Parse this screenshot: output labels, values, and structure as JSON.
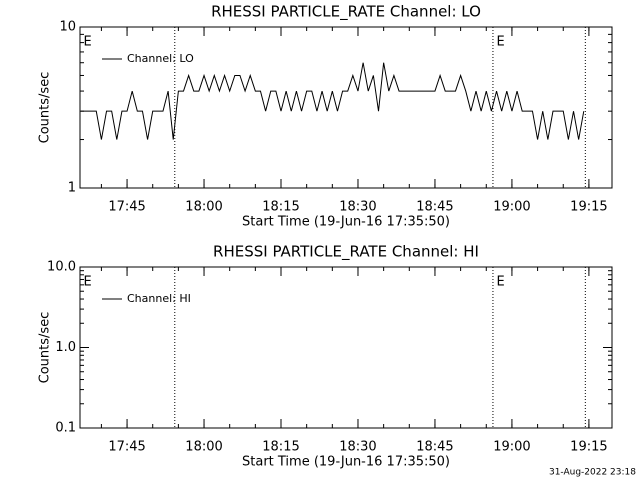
{
  "chart_data": [
    {
      "type": "line",
      "title": "RHESSI PARTICLE_RATE Channel: LO",
      "x_label": "Start Time (19-Jun-16 17:35:50)",
      "y_label": "Counts/sec",
      "log_y": true,
      "ylim": [
        1,
        10
      ],
      "yticks": [
        1,
        10
      ],
      "xlim": [
        1055.83,
        1159.5
      ],
      "xticks": [
        {
          "value": 1065,
          "label": "17:45"
        },
        {
          "value": 1080,
          "label": "18:00"
        },
        {
          "value": 1095,
          "label": "18:15"
        },
        {
          "value": 1110,
          "label": "18:30"
        },
        {
          "value": 1125,
          "label": "18:45"
        },
        {
          "value": 1140,
          "label": "19:00"
        },
        {
          "value": 1155,
          "label": "19:15"
        }
      ],
      "vlines": [
        1074.3,
        1136.3,
        1154.3
      ],
      "annotations": [
        {
          "text": "E",
          "x": 1056.5
        },
        {
          "text": "E",
          "x": 1137
        }
      ],
      "x": [
        1056,
        1057,
        1058,
        1059,
        1060,
        1061,
        1062,
        1063,
        1064,
        1065,
        1066,
        1067,
        1068,
        1069,
        1070,
        1071,
        1072,
        1073,
        1074,
        1075,
        1076,
        1077,
        1078,
        1079,
        1080,
        1081,
        1082,
        1083,
        1084,
        1085,
        1086,
        1087,
        1088,
        1089,
        1090,
        1091,
        1092,
        1093,
        1094,
        1095,
        1096,
        1097,
        1098,
        1099,
        1100,
        1101,
        1102,
        1103,
        1104,
        1105,
        1106,
        1107,
        1108,
        1109,
        1110,
        1111,
        1112,
        1113,
        1114,
        1115,
        1116,
        1117,
        1118,
        1119,
        1120,
        1121,
        1122,
        1123,
        1124,
        1125,
        1126,
        1127,
        1128,
        1129,
        1130,
        1131,
        1132,
        1133,
        1134,
        1135,
        1136,
        1137,
        1138,
        1139,
        1140,
        1141,
        1142,
        1143,
        1144,
        1145,
        1146,
        1147,
        1148,
        1149,
        1150,
        1151,
        1152,
        1153,
        1154
      ],
      "series": [
        {
          "name": "Channel: LO",
          "color": "#000000",
          "values": [
            3,
            3,
            3,
            3,
            2,
            3,
            3,
            2,
            3,
            3,
            4,
            3,
            3,
            2,
            3,
            3,
            3,
            4,
            2,
            4,
            4,
            5,
            4,
            4,
            5,
            4,
            5,
            4,
            5,
            4,
            5,
            5,
            4,
            5,
            4,
            4,
            3,
            4,
            4,
            3,
            4,
            3,
            4,
            3,
            4,
            4,
            3,
            4,
            3,
            4,
            3,
            4,
            4,
            5,
            4,
            6,
            4,
            5,
            3,
            6,
            4,
            5,
            4,
            4,
            4,
            4,
            4,
            4,
            4,
            4,
            5,
            4,
            4,
            4,
            5,
            4,
            3,
            4,
            3,
            4,
            3,
            4,
            3,
            4,
            3,
            4,
            3,
            3,
            3,
            2,
            3,
            2,
            3,
            3,
            3,
            2,
            3,
            2,
            3
          ]
        }
      ]
    },
    {
      "type": "line",
      "title": "RHESSI PARTICLE_RATE Channel: HI",
      "x_label": "Start Time (19-Jun-16 17:35:50)",
      "y_label": "Counts/sec",
      "log_y": true,
      "ylim": [
        0.1,
        10
      ],
      "yticks": [
        0.1,
        {
          "value": 1,
          "label": "1.0"
        },
        {
          "value": 10,
          "label": "10.0"
        }
      ],
      "xlim": [
        1055.83,
        1159.5
      ],
      "xticks": [
        {
          "value": 1065,
          "label": "17:45"
        },
        {
          "value": 1080,
          "label": "18:00"
        },
        {
          "value": 1095,
          "label": "18:15"
        },
        {
          "value": 1110,
          "label": "18:30"
        },
        {
          "value": 1125,
          "label": "18:45"
        },
        {
          "value": 1140,
          "label": "19:00"
        },
        {
          "value": 1155,
          "label": "19:15"
        }
      ],
      "vlines": [
        1074.3,
        1136.3,
        1154.3
      ],
      "annotations": [
        {
          "text": "E",
          "x": 1056.5
        },
        {
          "text": "E",
          "x": 1137
        }
      ],
      "x": [],
      "series": [
        {
          "name": "Channel: HI",
          "color": "#000000",
          "values": []
        }
      ]
    }
  ],
  "footer": "31-Aug-2022 23:18"
}
